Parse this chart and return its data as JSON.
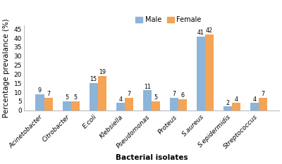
{
  "categories": [
    "Acinetobacter",
    "Citrobacter",
    "E.coli",
    "Klebsiella",
    "Pseudomonas",
    "Proteus",
    "S.aureus",
    "S.epidermidis",
    "Streptococcus"
  ],
  "male_values": [
    9,
    5,
    15,
    4,
    11,
    7,
    41,
    2,
    4
  ],
  "female_values": [
    7,
    5,
    19,
    7,
    5,
    6,
    42,
    4,
    7
  ],
  "male_color": "#8DB4D9",
  "female_color": "#F4A455",
  "bar_width": 0.32,
  "ylim": [
    0,
    47
  ],
  "yticks": [
    0,
    5,
    10,
    15,
    20,
    25,
    30,
    35,
    40,
    45
  ],
  "ylabel": "Percentage prevalance (%)",
  "xlabel": "Bacterial isolates",
  "legend_labels": [
    "Male",
    "Female"
  ],
  "legend_fontsize": 7,
  "axis_label_fontsize": 7.5,
  "tick_fontsize": 6.5,
  "value_label_fontsize": 5.8,
  "background_color": "#ffffff"
}
